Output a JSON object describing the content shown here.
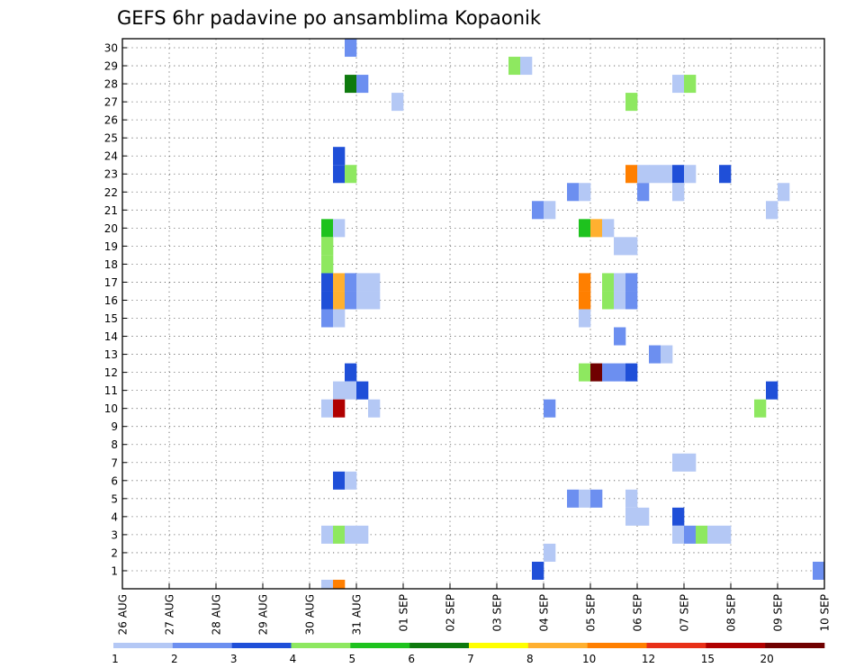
{
  "chart_data": {
    "type": "heatmap",
    "title": "GEFS 6hr padavine po ansamblima Kopaonik",
    "xlabel": "",
    "ylabel": "",
    "x_ticks": [
      "26 AUG",
      "27 AUG",
      "28 AUG",
      "29 AUG",
      "30 AUG",
      "31 AUG",
      "01 SEP",
      "02 SEP",
      "03 SEP",
      "04 SEP",
      "05 SEP",
      "06 SEP",
      "07 SEP",
      "08 SEP",
      "09 SEP",
      "10 SEP"
    ],
    "y_ticks": [
      1,
      2,
      3,
      4,
      5,
      6,
      7,
      8,
      9,
      10,
      11,
      12,
      13,
      14,
      15,
      16,
      17,
      18,
      19,
      20,
      21,
      22,
      23,
      24,
      25,
      26,
      27,
      28,
      29,
      30
    ],
    "xlim_steps": [
      0,
      60
    ],
    "ylim": [
      0,
      30
    ],
    "grid": true,
    "colorbar": {
      "labels": [
        "1",
        "2",
        "3",
        "4",
        "5",
        "6",
        "7",
        "8",
        "10",
        "12",
        "15",
        "20"
      ],
      "colors": [
        "#b4c8f5",
        "#6c8ff0",
        "#1f4fd8",
        "#8ee860",
        "#1ec21e",
        "#0e7a0e",
        "#ffff00",
        "#ffb030",
        "#ff7f00",
        "#e83018",
        "#b00000",
        "#700000"
      ]
    },
    "cells": [
      {
        "ens": 30,
        "step": 19,
        "level": 2
      },
      {
        "ens": 29,
        "step": 33,
        "level": 4
      },
      {
        "ens": 29,
        "step": 34,
        "level": 1
      },
      {
        "ens": 28,
        "step": 19,
        "level": 6
      },
      {
        "ens": 28,
        "step": 20,
        "level": 2
      },
      {
        "ens": 28,
        "step": 47,
        "level": 1
      },
      {
        "ens": 28,
        "step": 48,
        "level": 4
      },
      {
        "ens": 27,
        "step": 23,
        "level": 1
      },
      {
        "ens": 27,
        "step": 43,
        "level": 4
      },
      {
        "ens": 24,
        "step": 18,
        "level": 3
      },
      {
        "ens": 23,
        "step": 18,
        "level": 3
      },
      {
        "ens": 23,
        "step": 19,
        "level": 4
      },
      {
        "ens": 23,
        "step": 43,
        "level": 9
      },
      {
        "ens": 23,
        "step": 44,
        "level": 1
      },
      {
        "ens": 23,
        "step": 45,
        "level": 1
      },
      {
        "ens": 23,
        "step": 46,
        "level": 1
      },
      {
        "ens": 23,
        "step": 47,
        "level": 3
      },
      {
        "ens": 23,
        "step": 48,
        "level": 1
      },
      {
        "ens": 23,
        "step": 51,
        "level": 3
      },
      {
        "ens": 22,
        "step": 38,
        "level": 2
      },
      {
        "ens": 22,
        "step": 39,
        "level": 1
      },
      {
        "ens": 22,
        "step": 44,
        "level": 2
      },
      {
        "ens": 22,
        "step": 47,
        "level": 1
      },
      {
        "ens": 22,
        "step": 56,
        "level": 1
      },
      {
        "ens": 21,
        "step": 35,
        "level": 2
      },
      {
        "ens": 21,
        "step": 36,
        "level": 1
      },
      {
        "ens": 21,
        "step": 55,
        "level": 1
      },
      {
        "ens": 20,
        "step": 17,
        "level": 5
      },
      {
        "ens": 20,
        "step": 18,
        "level": 1
      },
      {
        "ens": 20,
        "step": 39,
        "level": 5
      },
      {
        "ens": 20,
        "step": 40,
        "level": 8
      },
      {
        "ens": 20,
        "step": 41,
        "level": 1
      },
      {
        "ens": 19,
        "step": 17,
        "level": 4
      },
      {
        "ens": 19,
        "step": 42,
        "level": 1
      },
      {
        "ens": 19,
        "step": 43,
        "level": 1
      },
      {
        "ens": 18,
        "step": 17,
        "level": 4
      },
      {
        "ens": 17,
        "step": 17,
        "level": 3
      },
      {
        "ens": 17,
        "step": 18,
        "level": 8
      },
      {
        "ens": 17,
        "step": 19,
        "level": 2
      },
      {
        "ens": 17,
        "step": 20,
        "level": 1
      },
      {
        "ens": 17,
        "step": 21,
        "level": 1
      },
      {
        "ens": 17,
        "step": 39,
        "level": 9
      },
      {
        "ens": 17,
        "step": 41,
        "level": 4
      },
      {
        "ens": 17,
        "step": 42,
        "level": 1
      },
      {
        "ens": 17,
        "step": 43,
        "level": 2
      },
      {
        "ens": 16,
        "step": 17,
        "level": 3
      },
      {
        "ens": 16,
        "step": 18,
        "level": 8
      },
      {
        "ens": 16,
        "step": 19,
        "level": 2
      },
      {
        "ens": 16,
        "step": 20,
        "level": 1
      },
      {
        "ens": 16,
        "step": 21,
        "level": 1
      },
      {
        "ens": 16,
        "step": 39,
        "level": 9
      },
      {
        "ens": 16,
        "step": 41,
        "level": 4
      },
      {
        "ens": 16,
        "step": 42,
        "level": 1
      },
      {
        "ens": 16,
        "step": 43,
        "level": 2
      },
      {
        "ens": 15,
        "step": 17,
        "level": 2
      },
      {
        "ens": 15,
        "step": 18,
        "level": 1
      },
      {
        "ens": 15,
        "step": 39,
        "level": 1
      },
      {
        "ens": 14,
        "step": 42,
        "level": 2
      },
      {
        "ens": 13,
        "step": 45,
        "level": 2
      },
      {
        "ens": 13,
        "step": 46,
        "level": 1
      },
      {
        "ens": 12,
        "step": 19,
        "level": 3
      },
      {
        "ens": 12,
        "step": 39,
        "level": 4
      },
      {
        "ens": 12,
        "step": 40,
        "level": 12
      },
      {
        "ens": 12,
        "step": 41,
        "level": 2
      },
      {
        "ens": 12,
        "step": 42,
        "level": 2
      },
      {
        "ens": 12,
        "step": 43,
        "level": 3
      },
      {
        "ens": 11,
        "step": 18,
        "level": 1
      },
      {
        "ens": 11,
        "step": 19,
        "level": 1
      },
      {
        "ens": 11,
        "step": 20,
        "level": 3
      },
      {
        "ens": 11,
        "step": 55,
        "level": 3
      },
      {
        "ens": 10,
        "step": 17,
        "level": 1
      },
      {
        "ens": 10,
        "step": 18,
        "level": 11
      },
      {
        "ens": 10,
        "step": 21,
        "level": 1
      },
      {
        "ens": 10,
        "step": 36,
        "level": 2
      },
      {
        "ens": 10,
        "step": 54,
        "level": 4
      },
      {
        "ens": 7,
        "step": 47,
        "level": 1
      },
      {
        "ens": 7,
        "step": 48,
        "level": 1
      },
      {
        "ens": 6,
        "step": 18,
        "level": 3
      },
      {
        "ens": 6,
        "step": 19,
        "level": 1
      },
      {
        "ens": 5,
        "step": 38,
        "level": 2
      },
      {
        "ens": 5,
        "step": 39,
        "level": 1
      },
      {
        "ens": 5,
        "step": 40,
        "level": 2
      },
      {
        "ens": 5,
        "step": 43,
        "level": 1
      },
      {
        "ens": 4,
        "step": 43,
        "level": 1
      },
      {
        "ens": 4,
        "step": 44,
        "level": 1
      },
      {
        "ens": 4,
        "step": 47,
        "level": 3
      },
      {
        "ens": 3,
        "step": 17,
        "level": 1
      },
      {
        "ens": 3,
        "step": 18,
        "level": 4
      },
      {
        "ens": 3,
        "step": 19,
        "level": 1
      },
      {
        "ens": 3,
        "step": 20,
        "level": 1
      },
      {
        "ens": 3,
        "step": 47,
        "level": 1
      },
      {
        "ens": 3,
        "step": 48,
        "level": 2
      },
      {
        "ens": 3,
        "step": 49,
        "level": 4
      },
      {
        "ens": 3,
        "step": 50,
        "level": 1
      },
      {
        "ens": 3,
        "step": 51,
        "level": 1
      },
      {
        "ens": 2,
        "step": 36,
        "level": 1
      },
      {
        "ens": 1,
        "step": 35,
        "level": 3
      },
      {
        "ens": 1,
        "step": 59,
        "level": 2
      },
      {
        "ens": 0,
        "step": 17,
        "level": 1
      },
      {
        "ens": 0,
        "step": 18,
        "level": 9
      }
    ]
  }
}
